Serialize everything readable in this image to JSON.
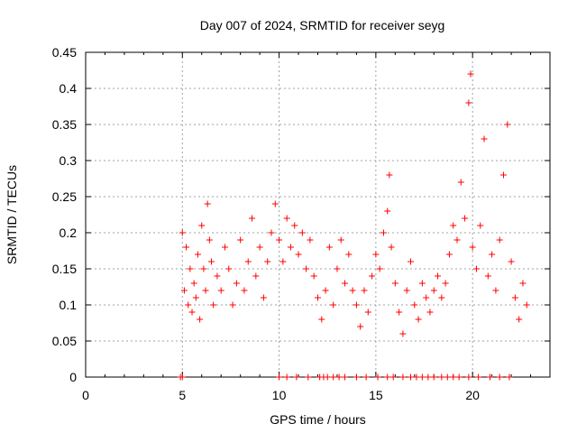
{
  "chart_data": {
    "type": "scatter",
    "title": "Day 007 of 2024, SRMTID for receiver seyg",
    "xlabel": "GPS time / hours",
    "ylabel": "SRMTID / TECUs",
    "xlim": [
      0,
      24
    ],
    "ylim": [
      0,
      0.45
    ],
    "xticks": [
      "0",
      "5",
      "10",
      "15",
      "20"
    ],
    "yticks": [
      "0",
      "0.05",
      "0.1",
      "0.15",
      "0.2",
      "0.25",
      "0.3",
      "0.35",
      "0.4",
      "0.45"
    ],
    "grid": true,
    "marker": "+",
    "color": "#ff0000",
    "series": [
      {
        "name": "seyg",
        "points": [
          [
            4.9,
            0
          ],
          [
            5.0,
            0
          ],
          [
            10.0,
            0
          ],
          [
            10.4,
            0
          ],
          [
            10.9,
            0
          ],
          [
            11.5,
            0
          ],
          [
            12.1,
            0
          ],
          [
            12.3,
            0
          ],
          [
            12.5,
            0
          ],
          [
            12.8,
            0
          ],
          [
            13.1,
            0
          ],
          [
            13.4,
            0
          ],
          [
            14.0,
            0
          ],
          [
            14.5,
            0
          ],
          [
            15.1,
            0
          ],
          [
            15.6,
            0
          ],
          [
            15.9,
            0
          ],
          [
            16.4,
            0
          ],
          [
            16.8,
            0
          ],
          [
            17.1,
            0
          ],
          [
            17.4,
            0
          ],
          [
            17.7,
            0
          ],
          [
            18.0,
            0
          ],
          [
            18.4,
            0
          ],
          [
            18.7,
            0
          ],
          [
            19.0,
            0
          ],
          [
            19.3,
            0
          ],
          [
            19.8,
            0
          ],
          [
            20.3,
            0
          ],
          [
            20.9,
            0
          ],
          [
            21.4,
            0
          ],
          [
            21.9,
            0
          ],
          [
            5.0,
            0.2
          ],
          [
            5.1,
            0.12
          ],
          [
            5.2,
            0.18
          ],
          [
            5.3,
            0.1
          ],
          [
            5.4,
            0.15
          ],
          [
            5.5,
            0.09
          ],
          [
            5.6,
            0.13
          ],
          [
            5.7,
            0.11
          ],
          [
            5.8,
            0.17
          ],
          [
            5.9,
            0.08
          ],
          [
            6.0,
            0.21
          ],
          [
            6.1,
            0.15
          ],
          [
            6.2,
            0.12
          ],
          [
            6.3,
            0.24
          ],
          [
            6.4,
            0.19
          ],
          [
            6.5,
            0.16
          ],
          [
            6.6,
            0.1
          ],
          [
            6.8,
            0.14
          ],
          [
            7.0,
            0.12
          ],
          [
            7.2,
            0.18
          ],
          [
            7.4,
            0.15
          ],
          [
            7.6,
            0.1
          ],
          [
            7.8,
            0.13
          ],
          [
            8.0,
            0.19
          ],
          [
            8.2,
            0.12
          ],
          [
            8.4,
            0.16
          ],
          [
            8.6,
            0.22
          ],
          [
            8.8,
            0.14
          ],
          [
            9.0,
            0.18
          ],
          [
            9.2,
            0.11
          ],
          [
            9.4,
            0.16
          ],
          [
            9.6,
            0.2
          ],
          [
            9.8,
            0.24
          ],
          [
            10.0,
            0.19
          ],
          [
            10.2,
            0.16
          ],
          [
            10.4,
            0.22
          ],
          [
            10.6,
            0.18
          ],
          [
            10.8,
            0.21
          ],
          [
            11.0,
            0.17
          ],
          [
            11.2,
            0.2
          ],
          [
            11.4,
            0.15
          ],
          [
            11.6,
            0.19
          ],
          [
            11.8,
            0.14
          ],
          [
            12.0,
            0.11
          ],
          [
            12.2,
            0.08
          ],
          [
            12.4,
            0.12
          ],
          [
            12.6,
            0.18
          ],
          [
            12.8,
            0.1
          ],
          [
            13.0,
            0.15
          ],
          [
            13.2,
            0.19
          ],
          [
            13.4,
            0.13
          ],
          [
            13.6,
            0.17
          ],
          [
            13.8,
            0.12
          ],
          [
            14.0,
            0.1
          ],
          [
            14.2,
            0.07
          ],
          [
            14.4,
            0.12
          ],
          [
            14.6,
            0.09
          ],
          [
            14.8,
            0.14
          ],
          [
            15.0,
            0.17
          ],
          [
            15.2,
            0.15
          ],
          [
            15.4,
            0.2
          ],
          [
            15.6,
            0.23
          ],
          [
            15.7,
            0.28
          ],
          [
            15.8,
            0.18
          ],
          [
            16.0,
            0.13
          ],
          [
            16.2,
            0.09
          ],
          [
            16.4,
            0.06
          ],
          [
            16.6,
            0.12
          ],
          [
            16.8,
            0.16
          ],
          [
            17.0,
            0.1
          ],
          [
            17.2,
            0.08
          ],
          [
            17.4,
            0.13
          ],
          [
            17.6,
            0.11
          ],
          [
            17.8,
            0.09
          ],
          [
            18.0,
            0.12
          ],
          [
            18.2,
            0.14
          ],
          [
            18.4,
            0.11
          ],
          [
            18.6,
            0.13
          ],
          [
            18.8,
            0.17
          ],
          [
            19.0,
            0.21
          ],
          [
            19.2,
            0.19
          ],
          [
            19.4,
            0.27
          ],
          [
            19.6,
            0.22
          ],
          [
            19.8,
            0.38
          ],
          [
            19.9,
            0.42
          ],
          [
            20.0,
            0.18
          ],
          [
            20.2,
            0.15
          ],
          [
            20.4,
            0.21
          ],
          [
            20.6,
            0.33
          ],
          [
            20.8,
            0.14
          ],
          [
            21.0,
            0.17
          ],
          [
            21.2,
            0.12
          ],
          [
            21.4,
            0.19
          ],
          [
            21.6,
            0.28
          ],
          [
            21.8,
            0.35
          ],
          [
            22.0,
            0.16
          ],
          [
            22.2,
            0.11
          ],
          [
            22.4,
            0.08
          ],
          [
            22.6,
            0.13
          ],
          [
            22.8,
            0.1
          ]
        ]
      }
    ]
  }
}
